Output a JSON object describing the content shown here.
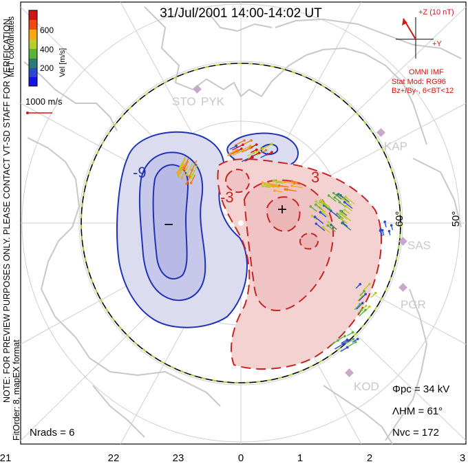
{
  "title": "31/Jul/2001  14:00-14:02  UT",
  "colorbar": {
    "label": "Vel [m/s]",
    "ticks": [
      "600",
      "400",
      "200"
    ],
    "colors": [
      "#d21414",
      "#f04a14",
      "#f5a814",
      "#b8cc2a",
      "#5ab23c",
      "#2a7a7a",
      "#2a4ad2",
      "#1414e6"
    ]
  },
  "coord_label": "MLT coordinates",
  "velocity_scale": "1000 m/s",
  "imf": {
    "z_label": "+Z (10 nT)",
    "y_label": "+Y",
    "source": "OMNI IMF",
    "stat_mod": "Stat Mod: RG96",
    "condition": "Bz+/By-, 6<BT<12"
  },
  "side_note": "NOTE: FOR PREVIEW PURPOSES ONLY. PLEASE CONTACT VT-SD STAFF FOR VERIFICATION.",
  "fit_order": "FitOrder: 8, mapEX format",
  "stations": [
    "STO",
    "PYK",
    "KAP",
    "SAS",
    "PGR",
    "KOD"
  ],
  "latitude_labels": [
    "60°",
    "50°"
  ],
  "contour_labels": [
    "-9",
    "3",
    "-3"
  ],
  "extrema": {
    "minus": "−",
    "plus": "+"
  },
  "stats": {
    "phi_pc": "Φpc = 34 kV",
    "lambda_hm": "ΛHM = 61°",
    "n_vc": "Nvc = 172",
    "n_rads": "Nrads = 6"
  },
  "mlt_ticks": [
    "21",
    "22",
    "23",
    "0",
    "1",
    "2",
    "3"
  ],
  "colors": {
    "frame": "#000000",
    "land": "#c8c8c8",
    "grid": "#c8c8c8",
    "negative_cell": "#1e32b4",
    "negative_fill": "#dcdcf0",
    "positive_cell": "#c82323",
    "positive_fill": "#f5d2d2",
    "hm_boundary": "#9bd23c",
    "text_red": "#dc2828"
  }
}
